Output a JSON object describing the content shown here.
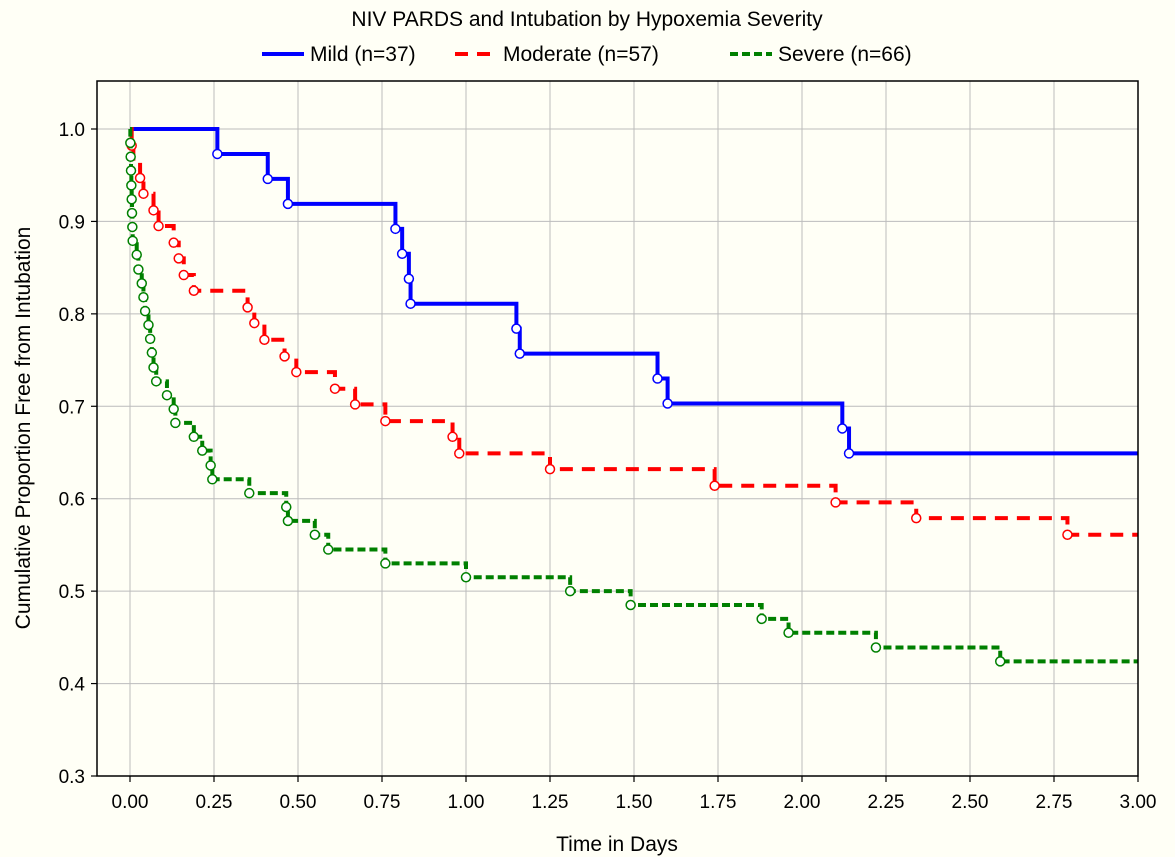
{
  "chart_data": {
    "type": "line",
    "title": "NIV PARDS and Intubation by Hypoxemia Severity",
    "xlabel": "Time in Days",
    "ylabel": "Cumulative Proportion Free from Intubation",
    "xlim": [
      0,
      3
    ],
    "ylim": [
      0.3,
      1.05
    ],
    "x_ticks": [
      "0.00",
      "0.25",
      "0.50",
      "0.75",
      "1.00",
      "1.25",
      "1.50",
      "1.75",
      "2.00",
      "2.25",
      "2.50",
      "2.75",
      "3.00"
    ],
    "y_ticks": [
      "0.3",
      "0.4",
      "0.5",
      "0.6",
      "0.7",
      "0.8",
      "0.9",
      "1.0"
    ],
    "grid": true,
    "legend": "top",
    "series": [
      {
        "name": "Mild (n=37)",
        "color": "#0000ff",
        "dash": "solid",
        "steps": [
          [
            0,
            1.0
          ],
          [
            0.26,
            0.973
          ],
          [
            0.41,
            0.946
          ],
          [
            0.47,
            0.919
          ],
          [
            0.79,
            0.892
          ],
          [
            0.81,
            0.865
          ],
          [
            0.83,
            0.838
          ],
          [
            0.835,
            0.811
          ],
          [
            1.15,
            0.784
          ],
          [
            1.16,
            0.757
          ],
          [
            1.57,
            0.73
          ],
          [
            1.6,
            0.703
          ],
          [
            2.12,
            0.676
          ],
          [
            2.14,
            0.649
          ],
          [
            3.0,
            0.649
          ]
        ],
        "censored": [
          0.26,
          0.41,
          0.47,
          0.79,
          0.81,
          0.83,
          0.835,
          1.15,
          1.16,
          1.57,
          1.6,
          2.12,
          2.14
        ]
      },
      {
        "name": "Moderate (n=57)",
        "color": "#ff0000",
        "dash": "dashed",
        "steps": [
          [
            0,
            1.0
          ],
          [
            0.005,
            0.982
          ],
          [
            0.01,
            0.965
          ],
          [
            0.03,
            0.947
          ],
          [
            0.04,
            0.93
          ],
          [
            0.07,
            0.912
          ],
          [
            0.085,
            0.895
          ],
          [
            0.13,
            0.877
          ],
          [
            0.145,
            0.86
          ],
          [
            0.16,
            0.842
          ],
          [
            0.19,
            0.825
          ],
          [
            0.35,
            0.807
          ],
          [
            0.37,
            0.79
          ],
          [
            0.4,
            0.772
          ],
          [
            0.46,
            0.754
          ],
          [
            0.495,
            0.737
          ],
          [
            0.61,
            0.719
          ],
          [
            0.67,
            0.702
          ],
          [
            0.76,
            0.684
          ],
          [
            0.96,
            0.667
          ],
          [
            0.98,
            0.649
          ],
          [
            1.25,
            0.632
          ],
          [
            1.74,
            0.614
          ],
          [
            2.1,
            0.596
          ],
          [
            2.34,
            0.579
          ],
          [
            2.79,
            0.561
          ],
          [
            3.0,
            0.561
          ]
        ],
        "censored": [
          0.005,
          0.03,
          0.04,
          0.07,
          0.085,
          0.13,
          0.145,
          0.16,
          0.19,
          0.35,
          0.37,
          0.4,
          0.46,
          0.495,
          0.61,
          0.67,
          0.76,
          0.96,
          0.98,
          1.25,
          1.74,
          2.1,
          2.34,
          2.79
        ]
      },
      {
        "name": "Severe (n=66)",
        "color": "#008000",
        "dash": "dashed",
        "steps": [
          [
            0,
            1.0
          ],
          [
            0.001,
            0.985
          ],
          [
            0.002,
            0.97
          ],
          [
            0.003,
            0.955
          ],
          [
            0.004,
            0.939
          ],
          [
            0.005,
            0.924
          ],
          [
            0.006,
            0.909
          ],
          [
            0.007,
            0.894
          ],
          [
            0.008,
            0.879
          ],
          [
            0.02,
            0.864
          ],
          [
            0.025,
            0.848
          ],
          [
            0.035,
            0.833
          ],
          [
            0.04,
            0.818
          ],
          [
            0.045,
            0.803
          ],
          [
            0.055,
            0.788
          ],
          [
            0.06,
            0.773
          ],
          [
            0.065,
            0.758
          ],
          [
            0.07,
            0.742
          ],
          [
            0.078,
            0.727
          ],
          [
            0.11,
            0.712
          ],
          [
            0.13,
            0.697
          ],
          [
            0.135,
            0.682
          ],
          [
            0.19,
            0.667
          ],
          [
            0.215,
            0.652
          ],
          [
            0.24,
            0.636
          ],
          [
            0.245,
            0.621
          ],
          [
            0.355,
            0.606
          ],
          [
            0.465,
            0.591
          ],
          [
            0.47,
            0.576
          ],
          [
            0.55,
            0.561
          ],
          [
            0.59,
            0.545
          ],
          [
            0.76,
            0.53
          ],
          [
            1.0,
            0.515
          ],
          [
            1.31,
            0.5
          ],
          [
            1.49,
            0.485
          ],
          [
            1.88,
            0.47
          ],
          [
            1.96,
            0.455
          ],
          [
            2.22,
            0.439
          ],
          [
            2.59,
            0.424
          ],
          [
            3.0,
            0.424
          ]
        ],
        "censored": [
          0.001,
          0.002,
          0.003,
          0.004,
          0.005,
          0.006,
          0.007,
          0.008,
          0.02,
          0.025,
          0.035,
          0.04,
          0.045,
          0.055,
          0.06,
          0.065,
          0.07,
          0.078,
          0.11,
          0.13,
          0.135,
          0.19,
          0.215,
          0.24,
          0.245,
          0.355,
          0.465,
          0.47,
          0.55,
          0.59,
          0.76,
          1.0,
          1.31,
          1.49,
          1.88,
          1.96,
          2.22,
          2.59
        ]
      }
    ]
  }
}
